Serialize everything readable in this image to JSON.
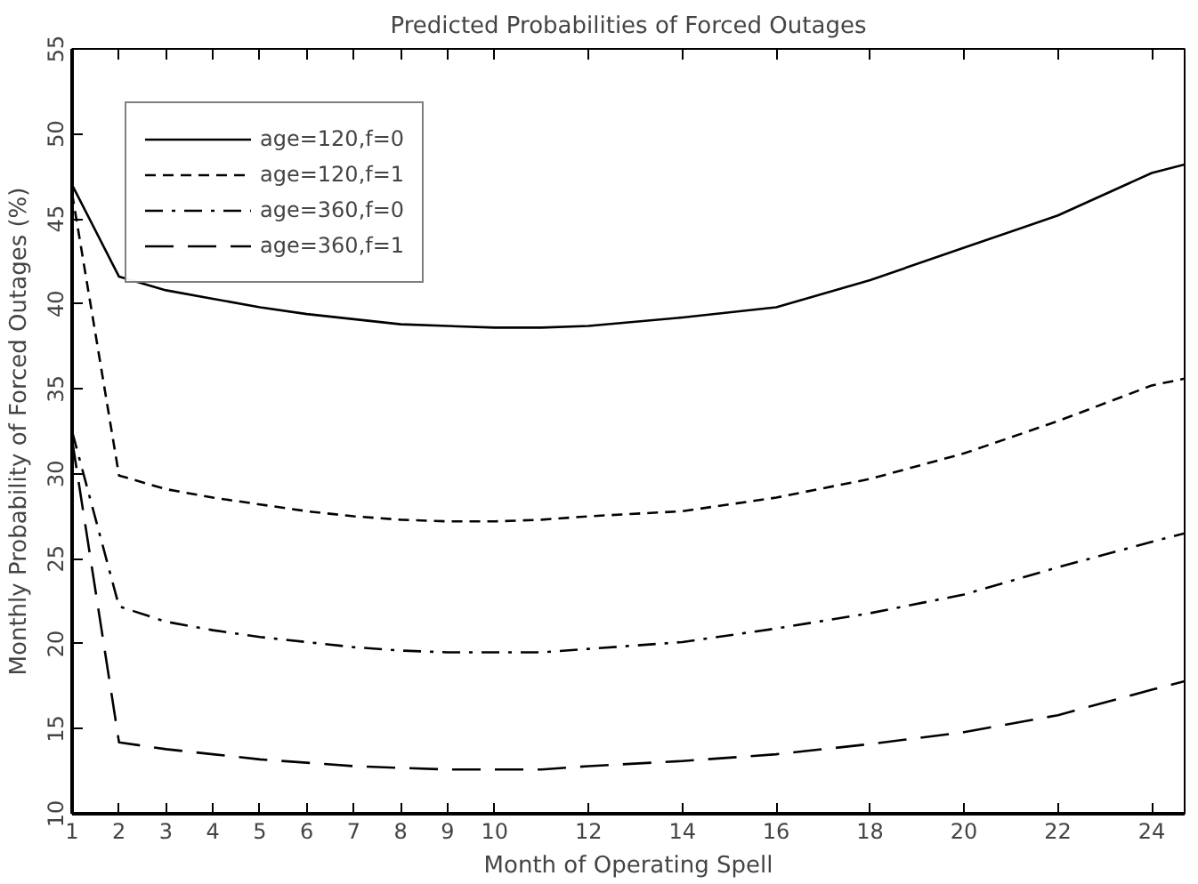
{
  "chart_data": {
    "type": "line",
    "title": "Predicted Probabilities of Forced Outages",
    "xlabel": "Month of Operating Spell",
    "ylabel": "Monthly Probability of Forced Outages (%)",
    "x": [
      1,
      2,
      3,
      4,
      5,
      6,
      7,
      8,
      9,
      10,
      11,
      12,
      14,
      16,
      18,
      20,
      22,
      24,
      24.7
    ],
    "xlim": [
      1,
      24.7
    ],
    "xticks": [
      1,
      2,
      3,
      4,
      5,
      6,
      7,
      8,
      9,
      10,
      12,
      14,
      16,
      18,
      20,
      22,
      24
    ],
    "ylim": [
      10,
      55
    ],
    "yticks": [
      10,
      15,
      20,
      25,
      30,
      35,
      40,
      45,
      50,
      55
    ],
    "grid": false,
    "legend": "top left",
    "marker": "none",
    "series": [
      {
        "name": "age=120,f=0",
        "color": "#000000",
        "line_style": "solid",
        "values": [
          47.0,
          41.6,
          40.8,
          40.3,
          39.8,
          39.4,
          39.1,
          38.8,
          38.7,
          38.6,
          38.6,
          38.7,
          39.2,
          39.8,
          41.4,
          43.3,
          45.2,
          47.7,
          48.2
        ]
      },
      {
        "name": "age=120,f=1",
        "color": "#000000",
        "line_style": "dashed",
        "values": [
          46.5,
          29.9,
          29.1,
          28.6,
          28.2,
          27.8,
          27.5,
          27.3,
          27.2,
          27.2,
          27.3,
          27.5,
          27.8,
          28.6,
          29.7,
          31.2,
          33.1,
          35.2,
          35.6
        ]
      },
      {
        "name": "age=360,f=0",
        "color": "#000000",
        "line_style": "dashdot",
        "values": [
          32.5,
          22.2,
          21.3,
          20.8,
          20.4,
          20.1,
          19.8,
          19.6,
          19.5,
          19.5,
          19.5,
          19.7,
          20.1,
          20.9,
          21.8,
          22.9,
          24.5,
          26.0,
          26.5
        ]
      },
      {
        "name": "age=360,f=1",
        "color": "#000000",
        "line_style": "longdash",
        "values": [
          32.0,
          14.2,
          13.8,
          13.5,
          13.2,
          13.0,
          12.8,
          12.7,
          12.6,
          12.6,
          12.6,
          12.8,
          13.1,
          13.5,
          14.1,
          14.8,
          15.8,
          17.3,
          17.8
        ]
      }
    ]
  }
}
